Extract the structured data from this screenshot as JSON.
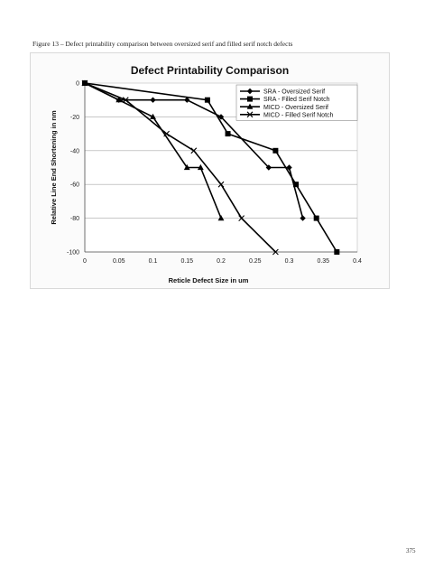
{
  "page": {
    "caption": "Figure 13 – Defect printability comparison between oversized serif and filled serif notch defects",
    "page_number": "375"
  },
  "chart_data": {
    "type": "line",
    "title": "Defect Printability Comparison",
    "xlabel": "Reticle Defect Size in um",
    "ylabel": "Relative Line End Shortening in nm",
    "xlim": [
      0,
      0.4
    ],
    "ylim": [
      -100,
      0
    ],
    "xticks": [
      0,
      0.05,
      0.1,
      0.15,
      0.2,
      0.25,
      0.3,
      0.35,
      0.4
    ],
    "xtick_labels": [
      "0",
      "0.05",
      "0.1",
      "0.15",
      "0.2",
      "0.25",
      "0.3",
      "0.35",
      "0.4"
    ],
    "yticks": [
      0,
      -20,
      -40,
      -60,
      -80,
      -100
    ],
    "ytick_labels": [
      "0",
      "-20",
      "-40",
      "-60",
      "-80",
      "-100"
    ],
    "grid": true,
    "legend_position": "top-right",
    "series": [
      {
        "name": "SRA - Oversized Serif",
        "marker": "diamond",
        "x": [
          0,
          0.05,
          0.1,
          0.15,
          0.2,
          0.27,
          0.3,
          0.32
        ],
        "y": [
          0,
          -10,
          -10,
          -10,
          -20,
          -50,
          -50,
          -80
        ]
      },
      {
        "name": "SRA - Filled Serif Notch",
        "marker": "square",
        "x": [
          0,
          0.18,
          0.21,
          0.28,
          0.31,
          0.34,
          0.37
        ],
        "y": [
          0,
          -10,
          -30,
          -40,
          -60,
          -80,
          -100
        ]
      },
      {
        "name": "MICD - Oversized Serif",
        "marker": "triangle",
        "x": [
          0,
          0.05,
          0.1,
          0.15,
          0.17,
          0.2
        ],
        "y": [
          0,
          -10,
          -20,
          -50,
          -50,
          -80
        ]
      },
      {
        "name": "MICD - Filled Serif Notch",
        "marker": "x",
        "x": [
          0,
          0.06,
          0.12,
          0.16,
          0.2,
          0.23,
          0.28
        ],
        "y": [
          0,
          -10,
          -30,
          -40,
          -60,
          -80,
          -100
        ]
      }
    ]
  }
}
